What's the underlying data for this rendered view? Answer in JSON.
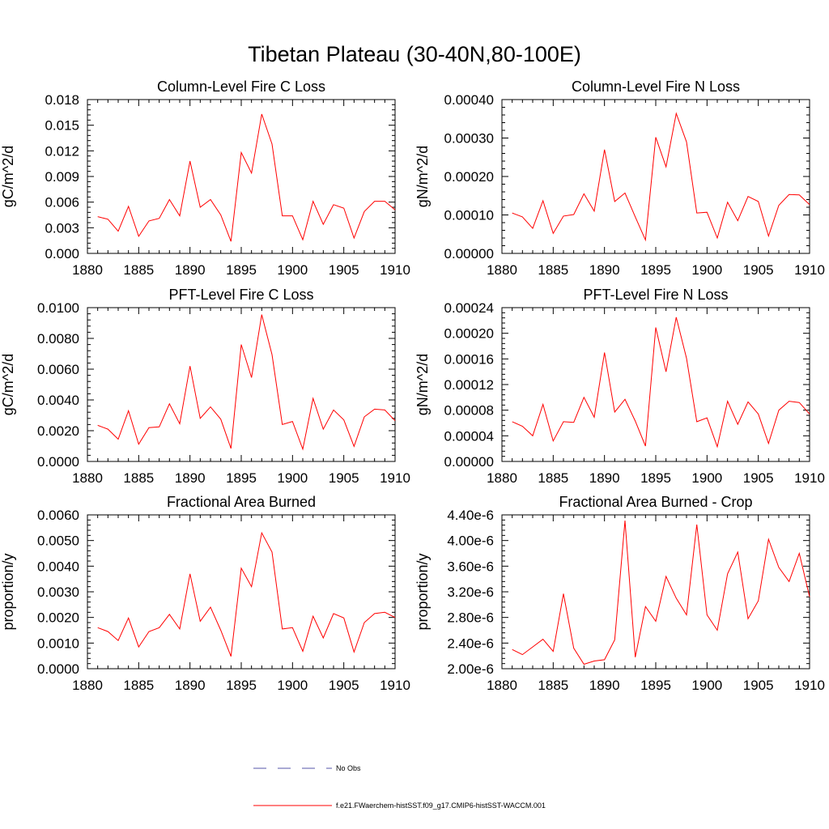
{
  "figure": {
    "title": "Tibetan Plateau (30-40N,80-100E)"
  },
  "legend": [
    {
      "label": "No Obs",
      "color": "#5555aa",
      "dash": true
    },
    {
      "label": "f.e21.FWaerchem-histSST.f09_g17.CMIP6-histSST-WACCM.001",
      "color": "#ff0000",
      "dash": false
    }
  ],
  "chart_data": [
    {
      "type": "line",
      "title": "Column-Level Fire C Loss",
      "ylabel": "gC/m^2/d",
      "xlim": [
        1880,
        1910
      ],
      "xticks": [
        "1880",
        "1885",
        "1890",
        "1895",
        "1900",
        "1905",
        "1910"
      ],
      "ylim": [
        0,
        0.018
      ],
      "yticks": [
        "0.000",
        "0.003",
        "0.006",
        "0.009",
        "0.012",
        "0.015",
        "0.018"
      ],
      "series": [
        {
          "color": "#ff0000",
          "x": [
            1881,
            1882,
            1883,
            1884,
            1885,
            1886,
            1887,
            1888,
            1889,
            1890,
            1891,
            1892,
            1893,
            1894,
            1895,
            1896,
            1897,
            1898,
            1899,
            1900,
            1901,
            1902,
            1903,
            1904,
            1905,
            1906,
            1907,
            1908,
            1909,
            1910
          ],
          "values": [
            0.0043,
            0.004,
            0.0026,
            0.0055,
            0.002,
            0.0038,
            0.0041,
            0.0063,
            0.0044,
            0.0108,
            0.0054,
            0.0063,
            0.0045,
            0.0014,
            0.0118,
            0.0094,
            0.0163,
            0.0128,
            0.0044,
            0.0044,
            0.0016,
            0.0061,
            0.0034,
            0.0057,
            0.0053,
            0.0018,
            0.0049,
            0.0061,
            0.0061,
            0.0051
          ]
        }
      ]
    },
    {
      "type": "line",
      "title": "Column-Level Fire N Loss",
      "ylabel": "gN/m^2/d",
      "xlim": [
        1880,
        1910
      ],
      "xticks": [
        "1880",
        "1885",
        "1890",
        "1895",
        "1900",
        "1905",
        "1910"
      ],
      "ylim": [
        0,
        0.0004
      ],
      "yticks": [
        "0.00000",
        "0.00010",
        "0.00020",
        "0.00030",
        "0.00040"
      ],
      "series": [
        {
          "color": "#ff0000",
          "x": [
            1881,
            1882,
            1883,
            1884,
            1885,
            1886,
            1887,
            1888,
            1889,
            1890,
            1891,
            1892,
            1893,
            1894,
            1895,
            1896,
            1897,
            1898,
            1899,
            1900,
            1901,
            1902,
            1903,
            1904,
            1905,
            1906,
            1907,
            1908,
            1909,
            1910
          ],
          "values": [
            0.000105,
            9.5e-05,
            6.5e-05,
            0.000137,
            5.2e-05,
            9.7e-05,
            0.000101,
            0.000155,
            0.00011,
            0.00027,
            0.000135,
            0.000157,
            9.5e-05,
            3.5e-05,
            0.000302,
            0.000225,
            0.000364,
            0.00029,
            0.000105,
            0.000107,
            4e-05,
            0.000133,
            8.5e-05,
            0.000148,
            0.000135,
            4.5e-05,
            0.000125,
            0.000153,
            0.000152,
            0.000127
          ]
        }
      ]
    },
    {
      "type": "line",
      "title": "PFT-Level Fire C Loss",
      "ylabel": "gC/m^2/d",
      "xlim": [
        1880,
        1910
      ],
      "xticks": [
        "1880",
        "1885",
        "1890",
        "1895",
        "1900",
        "1905",
        "1910"
      ],
      "ylim": [
        0,
        0.01
      ],
      "yticks": [
        "0.0000",
        "0.0020",
        "0.0040",
        "0.0060",
        "0.0080",
        "0.0100"
      ],
      "series": [
        {
          "color": "#ff0000",
          "x": [
            1881,
            1882,
            1883,
            1884,
            1885,
            1886,
            1887,
            1888,
            1889,
            1890,
            1891,
            1892,
            1893,
            1894,
            1895,
            1896,
            1897,
            1898,
            1899,
            1900,
            1901,
            1902,
            1903,
            1904,
            1905,
            1906,
            1907,
            1908,
            1909,
            1910
          ],
          "values": [
            0.00235,
            0.0021,
            0.00145,
            0.0033,
            0.00112,
            0.0022,
            0.00225,
            0.00375,
            0.00245,
            0.0062,
            0.0028,
            0.00355,
            0.00275,
            0.00085,
            0.0076,
            0.00545,
            0.00955,
            0.00695,
            0.0024,
            0.0026,
            0.0008,
            0.0041,
            0.0021,
            0.00335,
            0.0027,
            0.00098,
            0.0029,
            0.0034,
            0.00335,
            0.00265
          ]
        }
      ]
    },
    {
      "type": "line",
      "title": "PFT-Level Fire N Loss",
      "ylabel": "gN/m^2/d",
      "xlim": [
        1880,
        1910
      ],
      "xticks": [
        "1880",
        "1885",
        "1890",
        "1895",
        "1900",
        "1905",
        "1910"
      ],
      "ylim": [
        0,
        0.00024
      ],
      "yticks": [
        "0.00000",
        "0.00004",
        "0.00008",
        "0.00012",
        "0.00016",
        "0.00020",
        "0.00024"
      ],
      "series": [
        {
          "color": "#ff0000",
          "x": [
            1881,
            1882,
            1883,
            1884,
            1885,
            1886,
            1887,
            1888,
            1889,
            1890,
            1891,
            1892,
            1893,
            1894,
            1895,
            1896,
            1897,
            1898,
            1899,
            1900,
            1901,
            1902,
            1903,
            1904,
            1905,
            1906,
            1907,
            1908,
            1909,
            1910
          ],
          "values": [
            6.2e-05,
            5.5e-05,
            4e-05,
            8.9e-05,
            3.2e-05,
            6.2e-05,
            6.1e-05,
            0.0001,
            6.9e-05,
            0.00017,
            7.7e-05,
            9.7e-05,
            6.3e-05,
            2.4e-05,
            0.000209,
            0.00014,
            0.000225,
            0.000161,
            6.2e-05,
            6.8e-05,
            2.3e-05,
            9.4e-05,
            5.8e-05,
            9.3e-05,
            7.4e-05,
            2.8e-05,
            8e-05,
            9.4e-05,
            9.2e-05,
            7.4e-05
          ]
        }
      ]
    },
    {
      "type": "line",
      "title": "Fractional Area Burned",
      "ylabel": "proportion/y",
      "xlim": [
        1880,
        1910
      ],
      "xticks": [
        "1880",
        "1885",
        "1890",
        "1895",
        "1900",
        "1905",
        "1910"
      ],
      "ylim": [
        0,
        0.006
      ],
      "yticks": [
        "0.0000",
        "0.0010",
        "0.0020",
        "0.0030",
        "0.0040",
        "0.0050",
        "0.0060"
      ],
      "series": [
        {
          "color": "#ff0000",
          "x": [
            1881,
            1882,
            1883,
            1884,
            1885,
            1886,
            1887,
            1888,
            1889,
            1890,
            1891,
            1892,
            1893,
            1894,
            1895,
            1896,
            1897,
            1898,
            1899,
            1900,
            1901,
            1902,
            1903,
            1904,
            1905,
            1906,
            1907,
            1908,
            1909,
            1910
          ],
          "values": [
            0.0016,
            0.00145,
            0.0011,
            0.00198,
            0.00085,
            0.00145,
            0.0016,
            0.00212,
            0.00155,
            0.0037,
            0.00185,
            0.0024,
            0.0015,
            0.00048,
            0.00392,
            0.0032,
            0.0053,
            0.00455,
            0.00155,
            0.0016,
            0.00068,
            0.00205,
            0.0012,
            0.00215,
            0.00198,
            0.00065,
            0.0018,
            0.00215,
            0.0022,
            0.002
          ]
        }
      ]
    },
    {
      "type": "line",
      "title": "Fractional Area Burned - Crop",
      "ylabel": "proportion/y",
      "xlim": [
        1880,
        1910
      ],
      "xticks": [
        "1880",
        "1885",
        "1890",
        "1895",
        "1900",
        "1905",
        "1910"
      ],
      "ylim": [
        2e-06,
        4.4e-06
      ],
      "yticks": [
        "2.00e-6",
        "2.40e-6",
        "2.80e-6",
        "3.20e-6",
        "3.60e-6",
        "4.00e-6",
        "4.40e-6"
      ],
      "series": [
        {
          "color": "#ff0000",
          "x": [
            1881,
            1882,
            1883,
            1884,
            1885,
            1886,
            1887,
            1888,
            1889,
            1890,
            1891,
            1892,
            1893,
            1894,
            1895,
            1896,
            1897,
            1898,
            1899,
            1900,
            1901,
            1902,
            1903,
            1904,
            1905,
            1906,
            1907,
            1908,
            1909,
            1910
          ],
          "values": [
            2.3e-06,
            2.22e-06,
            2.34e-06,
            2.46e-06,
            2.27e-06,
            3.17e-06,
            2.32e-06,
            2.07e-06,
            2.12e-06,
            2.14e-06,
            2.45e-06,
            4.31e-06,
            2.18e-06,
            2.97e-06,
            2.74e-06,
            3.44e-06,
            3.1e-06,
            2.84e-06,
            4.25e-06,
            2.84e-06,
            2.6e-06,
            3.48e-06,
            3.82e-06,
            2.78e-06,
            3.06e-06,
            4.02e-06,
            3.58e-06,
            3.36e-06,
            3.8e-06,
            3.12e-06
          ]
        }
      ]
    }
  ]
}
